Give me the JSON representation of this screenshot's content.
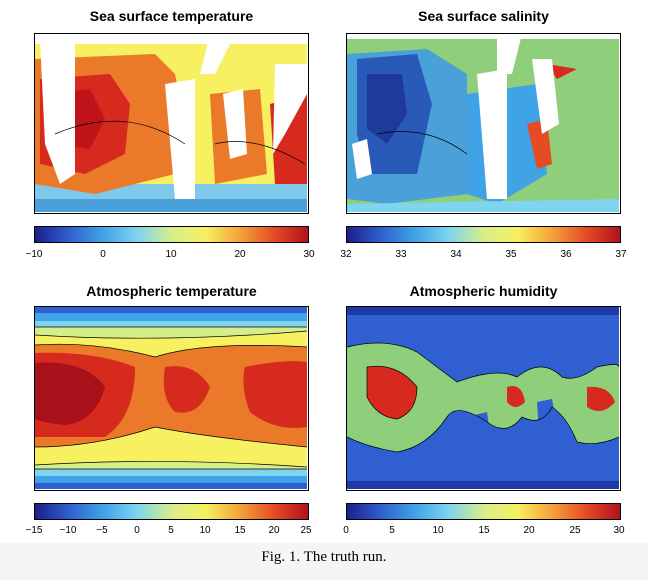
{
  "figure": {
    "caption": "Fig. 1. The truth run.",
    "panels": [
      {
        "title": "Sea surface temperature",
        "colorbar_ticks": [
          "−10",
          "0",
          "10",
          "20",
          "30"
        ],
        "colorbar_range": [
          -10,
          30
        ]
      },
      {
        "title": "Sea surface salinity",
        "colorbar_ticks": [
          "32",
          "33",
          "34",
          "35",
          "36",
          "37"
        ],
        "colorbar_range": [
          32,
          37
        ]
      },
      {
        "title": "Atmospheric temperature",
        "colorbar_ticks": [
          "−15",
          "−10",
          "−5",
          "0",
          "5",
          "10",
          "15",
          "20",
          "25"
        ],
        "colorbar_range": [
          -15,
          25
        ]
      },
      {
        "title": "Atmospheric humidity",
        "colorbar_ticks": [
          "0",
          "5",
          "10",
          "15",
          "20",
          "25",
          "30"
        ],
        "colorbar_range": [
          0,
          30
        ]
      }
    ],
    "colormap": "jet"
  }
}
